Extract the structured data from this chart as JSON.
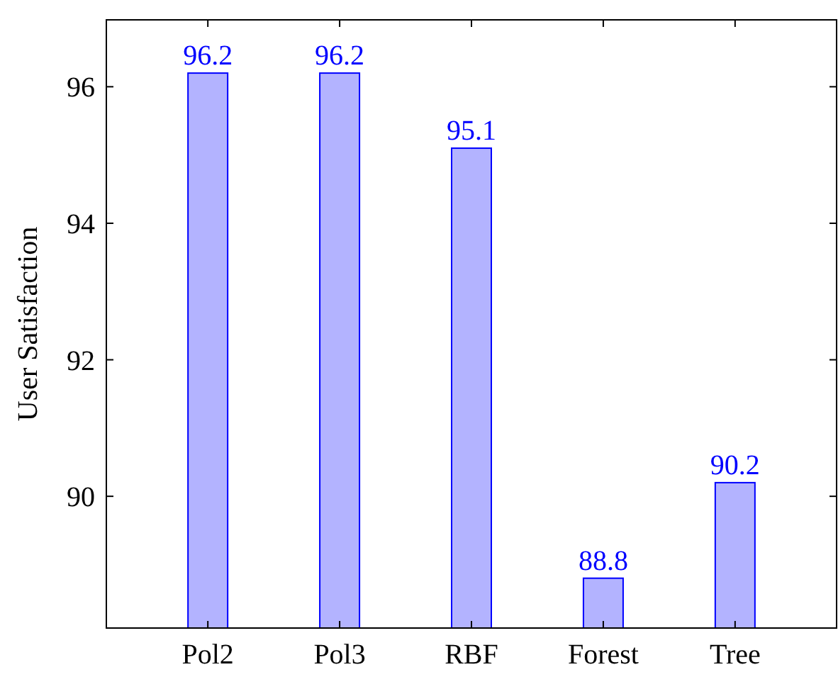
{
  "chart_data": {
    "type": "bar",
    "ylabel": "User Satisfaction",
    "categories": [
      "Pol2",
      "Pol3",
      "RBF",
      "Forest",
      "Tree"
    ],
    "values": [
      96.2,
      96.2,
      95.1,
      88.8,
      90.2
    ],
    "color": "#b3b3ff",
    "ylim": [
      88.07,
      96.98
    ],
    "yticks": [
      90,
      92,
      94,
      96
    ],
    "data_labels": true
  }
}
